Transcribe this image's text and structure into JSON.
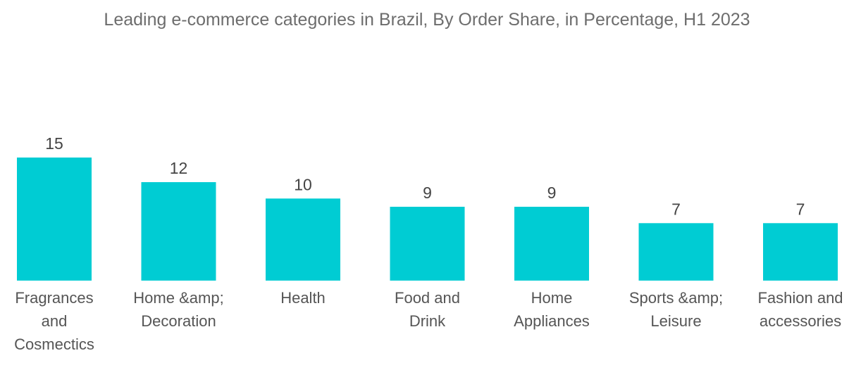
{
  "chart_data": {
    "type": "bar",
    "title": "Leading e-commerce categories in Brazil, By Order Share, in Percentage, H1 2023",
    "xlabel": "",
    "ylabel": "",
    "categories": [
      "Fragrances and Cosmectics",
      "Home &amp; Decoration",
      "Health",
      "Food and Drink",
      "Home Appliances",
      "Sports &amp; Leisure",
      "Fashion and accessories"
    ],
    "values": [
      15,
      12,
      10,
      9,
      9,
      7,
      7
    ],
    "value_labels": [
      "15",
      "12",
      "10",
      "9",
      "9",
      "7",
      "7"
    ],
    "ylim": [
      0,
      15
    ],
    "grid": false,
    "legend": "none",
    "bar_color": "#00ccd3"
  }
}
